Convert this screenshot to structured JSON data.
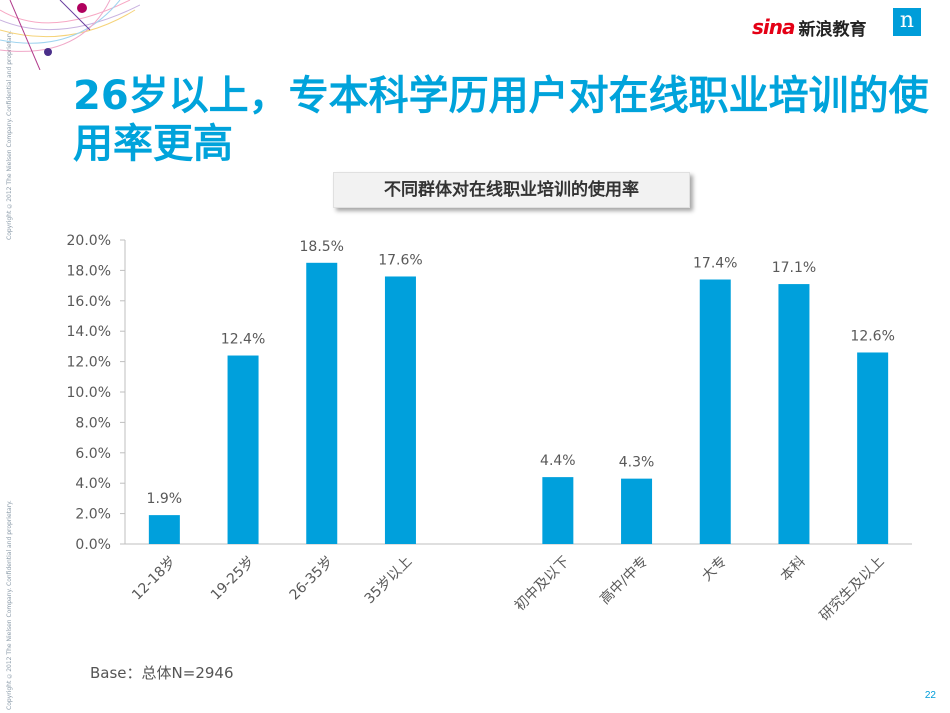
{
  "header": {
    "brand_mark": "sina",
    "brand_name": "新浪教育",
    "logo_letter": "n",
    "side_copyright_1": "Copyright ©2012 The Nielsen Company. Confidential and proprietary.",
    "side_copyright_2": "Copyright ©2012 The Nielsen Company. Confidential and proprietary."
  },
  "title": "26岁以上，专本科学历用户对在线职业培训的使用率更高",
  "subtitle": "不同群体对在线职业培训的使用率",
  "base_note": "Base：总体N=2946",
  "page_number": "22",
  "colors": {
    "bar": "#00a0dc",
    "title": "#00a3db",
    "axis": "#bfbfbf",
    "text": "#595959"
  },
  "chart_data": {
    "type": "bar",
    "title": "不同群体对在线职业培训的使用率",
    "categories": [
      "12-18岁",
      "19-25岁",
      "26-35岁",
      "35岁以上",
      "初中及以下",
      "高中/中专",
      "大专",
      "本科",
      "研究生及以上"
    ],
    "groups": [
      {
        "categories": [
          "12-18岁",
          "19-25岁",
          "26-35岁",
          "35岁以上"
        ],
        "values": [
          1.9,
          12.4,
          18.5,
          17.6
        ]
      },
      {
        "categories": [
          "初中及以下",
          "高中/中专",
          "大专",
          "本科",
          "研究生及以上"
        ],
        "values": [
          4.4,
          4.3,
          17.4,
          17.1,
          12.6
        ]
      }
    ],
    "values": [
      1.9,
      12.4,
      18.5,
      17.6,
      4.4,
      4.3,
      17.4,
      17.1,
      12.6
    ],
    "value_labels": [
      "1.9%",
      "12.4%",
      "18.5%",
      "17.6%",
      "4.4%",
      "4.3%",
      "17.4%",
      "17.1%",
      "12.6%"
    ],
    "y_ticks": [
      "0.0%",
      "2.0%",
      "4.0%",
      "6.0%",
      "8.0%",
      "10.0%",
      "12.0%",
      "14.0%",
      "16.0%",
      "18.0%",
      "20.0%"
    ],
    "ylim": [
      0,
      20
    ],
    "xlabel": "",
    "ylabel": "",
    "grid": false
  }
}
